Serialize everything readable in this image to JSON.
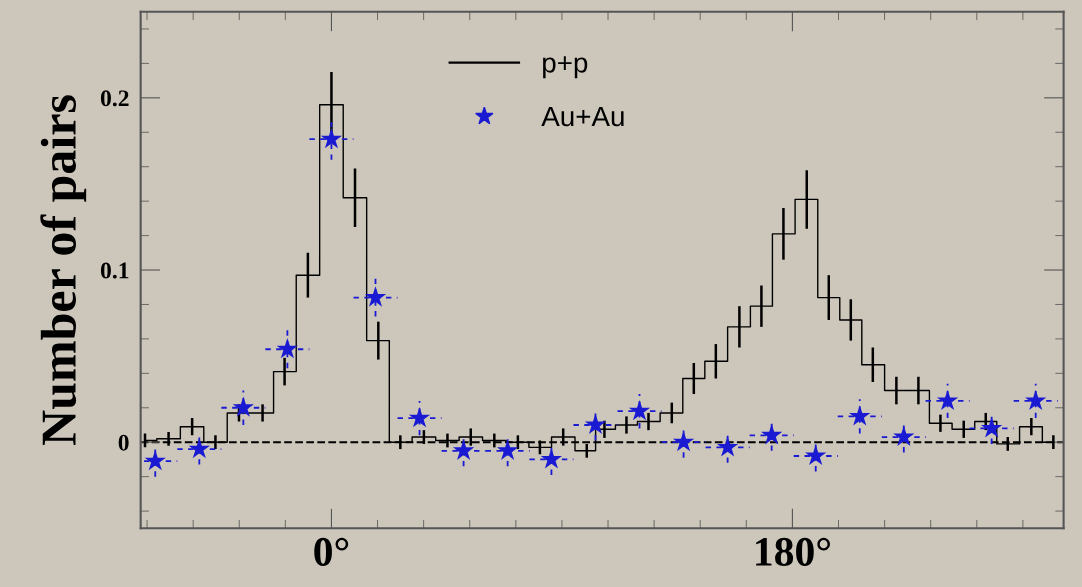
{
  "chart_data": {
    "type": "step",
    "ylabel": "Number of pairs",
    "xlim": [
      -74.5,
      285.9
    ],
    "ylim": [
      -0.05,
      0.25
    ],
    "xticks": [
      {
        "value": 0,
        "label": "0°"
      },
      {
        "value": 180,
        "label": "180°"
      }
    ],
    "yticks": [
      0,
      0.1,
      0.2
    ],
    "grid": false,
    "legend": "top",
    "ref_lines": [
      {
        "axis": "y",
        "value": 0,
        "color": "#000000",
        "line_style": "dashed"
      }
    ],
    "series": [
      {
        "name": "p+p",
        "color": "#000000",
        "marker": "none",
        "x": [
          -72.8,
          -63.6,
          -54.4,
          -45.3,
          -36.1,
          -26.9,
          -18.3,
          -9.2,
          0,
          9.2,
          18.3,
          26.9,
          36.1,
          45.3,
          54.4,
          63.6,
          72.8,
          81.4,
          90.5,
          99.7,
          106.6,
          115.2,
          123.8,
          132.9,
          141.5,
          150.1,
          159.3,
          167.9,
          176.5,
          185.6,
          194.2,
          202.8,
          211.4,
          220.6,
          229.2,
          237.8,
          246.9,
          255.5,
          264.1,
          273.3,
          281.9
        ],
        "values": [
          0.001,
          0.002,
          0.009,
          0.0,
          0.017,
          0.017,
          0.041,
          0.097,
          0.196,
          0.142,
          0.059,
          0.0,
          0.003,
          0.001,
          0.003,
          0.001,
          0.0,
          -0.003,
          0.003,
          -0.005,
          0.0075,
          0.01,
          0.012,
          0.017,
          0.037,
          0.047,
          0.067,
          0.079,
          0.121,
          0.141,
          0.084,
          0.071,
          0.045,
          0.03,
          0.03,
          0.011,
          0.0075,
          0.012,
          -0.001,
          0.009,
          0.0
        ],
        "errors": [
          0.004,
          0.004,
          0.005,
          0.004,
          0.005,
          0.005,
          0.008,
          0.013,
          0.019,
          0.017,
          0.011,
          0.004,
          0.004,
          0.004,
          0.005,
          0.004,
          0.004,
          0.004,
          0.005,
          0.004,
          0.005,
          0.005,
          0.005,
          0.006,
          0.009,
          0.01,
          0.012,
          0.012,
          0.015,
          0.017,
          0.013,
          0.012,
          0.01,
          0.008,
          0.008,
          0.005,
          0.005,
          0.005,
          0.004,
          0.005,
          0.004
        ]
      },
      {
        "name": "Au+Au",
        "type": "scatter",
        "color": "#1a1ad2",
        "marker": "star",
        "x": [
          -68.8,
          -51.6,
          -34.4,
          -17.2,
          0,
          17.2,
          34.4,
          51.6,
          68.8,
          85.9,
          103.1,
          120.3,
          137.5,
          154.7,
          171.9,
          189.1,
          206.3,
          223.5,
          240.6,
          257.8,
          275.0
        ],
        "values": [
          -0.011,
          -0.004,
          0.02,
          0.054,
          0.176,
          0.084,
          0.014,
          -0.005,
          -0.005,
          -0.01,
          0.01,
          0.018,
          0.0,
          -0.003,
          0.004,
          -0.008,
          0.015,
          0.003,
          0.024,
          0.008,
          0.024
        ],
        "errors": [
          0.009,
          0.009,
          0.01,
          0.011,
          0.012,
          0.011,
          0.01,
          0.009,
          0.009,
          0.009,
          0.009,
          0.01,
          0.009,
          0.009,
          0.009,
          0.009,
          0.01,
          0.009,
          0.01,
          0.009,
          0.01
        ],
        "xerrors": [
          8.6,
          8.6,
          8.6,
          8.6,
          8.6,
          8.6,
          8.6,
          8.6,
          8.6,
          8.6,
          8.6,
          8.6,
          8.6,
          8.6,
          8.6,
          8.6,
          8.6,
          8.6,
          8.6,
          8.6,
          8.6
        ]
      }
    ]
  }
}
